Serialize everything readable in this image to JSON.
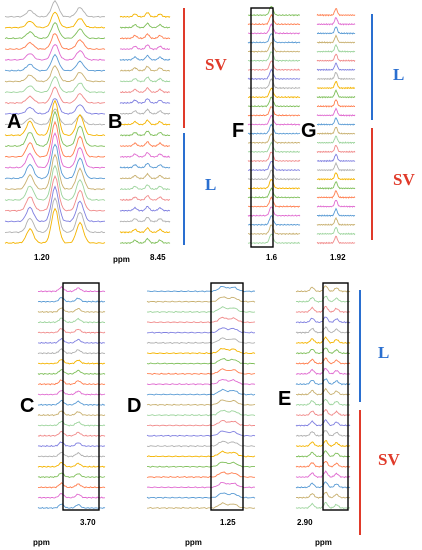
{
  "figure": {
    "panels": [
      {
        "id": "A",
        "tick": "1.20",
        "axis_unit": "ppm",
        "traces": 22,
        "peaks": [
          0.25,
          0.5,
          0.75
        ],
        "amp": [
          0.9,
          2.2,
          1.3
        ]
      },
      {
        "id": "B",
        "tick": "8.45",
        "axis_unit": "ppm",
        "traces": 22,
        "peaks": [
          0.3,
          0.55,
          0.8
        ],
        "amp": [
          0.4,
          0.6,
          0.4
        ]
      },
      {
        "id": "F",
        "tick": "1.6",
        "axis_unit": "",
        "traces": 26,
        "peaks": [
          0.45
        ],
        "amp": [
          1.5
        ]
      },
      {
        "id": "G",
        "tick": "1.92",
        "axis_unit": "",
        "traces": 26,
        "peaks": [
          0.5
        ],
        "amp": [
          1.1
        ]
      },
      {
        "id": "C",
        "tick": "3.70",
        "axis_unit": "ppm",
        "traces": 22,
        "peaks": [
          0.35,
          0.6
        ],
        "amp": [
          0.6,
          0.5
        ]
      },
      {
        "id": "D",
        "tick": "1.25",
        "axis_unit": "ppm",
        "traces": 22,
        "peaks": [
          0.7,
          0.8
        ],
        "amp": [
          0.7,
          0.6
        ]
      },
      {
        "id": "E",
        "tick": "2.90",
        "axis_unit": "ppm",
        "traces": 22,
        "peaks": [
          0.3,
          0.55,
          0.75
        ],
        "amp": [
          0.6,
          0.8,
          0.5
        ]
      }
    ],
    "groups": [
      {
        "panel": "B",
        "label": "SV",
        "color": "#e03a2a"
      },
      {
        "panel": "B",
        "label": "L",
        "color": "#2a6fd0"
      },
      {
        "panel": "G",
        "label": "L",
        "color": "#2a6fd0"
      },
      {
        "panel": "G",
        "label": "SV",
        "color": "#e03a2a"
      },
      {
        "panel": "E",
        "label": "L",
        "color": "#2a6fd0"
      },
      {
        "panel": "E",
        "label": "SV",
        "color": "#e03a2a"
      }
    ],
    "trace_colors": [
      "#b0b0b0",
      "#f4b400",
      "#7fbf5a",
      "#ff7f50",
      "#e06bd0",
      "#5a9bd4",
      "#c8b070",
      "#9dd49d",
      "#f08a8a",
      "#8080e0"
    ]
  }
}
